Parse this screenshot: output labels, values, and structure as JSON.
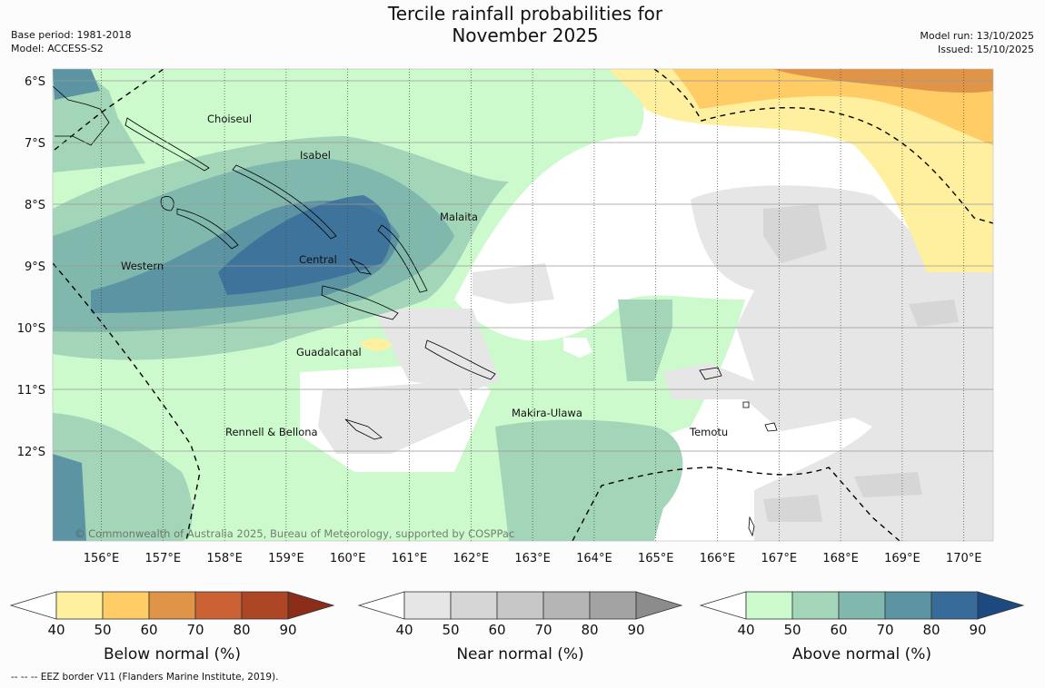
{
  "header": {
    "title_line1": "Tercile rainfall probabilities for",
    "title_line2": "November 2025",
    "base_period": "Base period: 1981-2018",
    "model": "Model: ACCESS-S2",
    "model_run": "Model run: 13/10/2025",
    "issued": "Issued: 15/10/2025"
  },
  "map": {
    "lat_labels": [
      "6°S",
      "7°S",
      "8°S",
      "9°S",
      "10°S",
      "11°S",
      "12°S"
    ],
    "lon_labels": [
      "156°E",
      "157°E",
      "158°E",
      "159°E",
      "160°E",
      "161°E",
      "162°E",
      "163°E",
      "164°E",
      "165°E",
      "166°E",
      "167°E",
      "168°E",
      "169°E",
      "170°E"
    ],
    "places": [
      "Choiseul",
      "Isabel",
      "Malaita",
      "Western",
      "Central",
      "Guadalcanal",
      "Makira-Ulawa",
      "Rennell & Bellona",
      "Temotu"
    ],
    "copyright": "© Commonwealth of Australia 2025, Bureau of Meteorology, supported by COSPPac"
  },
  "legends": [
    {
      "title": "Below normal (%)",
      "ticks": [
        "40",
        "50",
        "60",
        "70",
        "80",
        "90"
      ],
      "colors": [
        "#fff0a0",
        "#ffcc66",
        "#e09448",
        "#cc6233",
        "#ad4624",
        "#8c2d1a"
      ]
    },
    {
      "title": "Near normal (%)",
      "ticks": [
        "40",
        "50",
        "60",
        "70",
        "80",
        "90"
      ],
      "colors": [
        "#e6e6e6",
        "#d6d6d6",
        "#c7c7c7",
        "#b5b5b5",
        "#a3a3a3",
        "#8c8c8c"
      ]
    },
    {
      "title": "Above normal (%)",
      "ticks": [
        "40",
        "50",
        "60",
        "70",
        "80",
        "90"
      ],
      "colors": [
        "#ccfacc",
        "#a3d6b8",
        "#80b8ad",
        "#5c94a3",
        "#376b99",
        "#1c4a80"
      ]
    }
  ],
  "footnote": "--  --  -- EEZ border V11 (Flanders Marine Institute, 2019)."
}
